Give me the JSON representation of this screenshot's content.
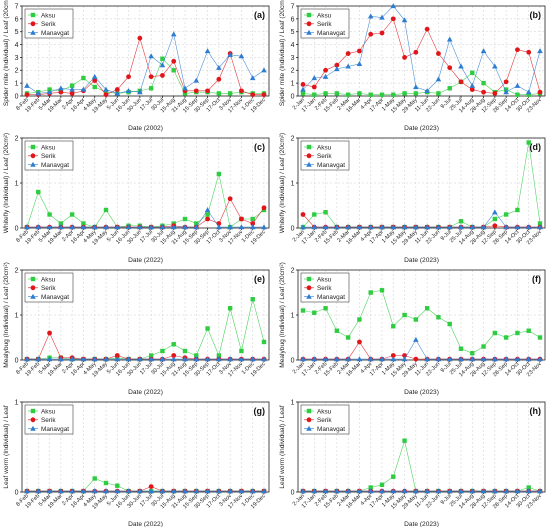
{
  "colors": {
    "Aksu": "#2ecc40",
    "Serik": "#e0161b",
    "Manavgat": "#2f7dd1"
  },
  "chart_data": [
    {
      "panel": "(a)",
      "type": "line",
      "ylabel": "Spider mite (Individual) / Leaf (20cm²)",
      "xlabel": "Date (2002)",
      "ylim": [
        0,
        7
      ],
      "yticks": [
        "0",
        "1",
        "2",
        "3",
        "4",
        "5",
        "6",
        "7"
      ],
      "categories": [
        "8-Feb",
        "19-Feb",
        "5-Mar",
        "19-Mar",
        "2-Apr",
        "16-Apr",
        "4-May",
        "19-May",
        "5-Jun",
        "16-Jun",
        "30-Jun",
        "17-Jul",
        "30-Jul",
        "15-Aug",
        "31-Aug",
        "15-Sep",
        "30-Sep",
        "17-Oct",
        "3-Nov",
        "17-Nov",
        "1-Dec",
        "19-Dec"
      ],
      "series": [
        {
          "name": "Aksu",
          "marker": "square",
          "values": [
            0.2,
            0.3,
            0.5,
            0.4,
            0.8,
            1.4,
            0.7,
            0.3,
            0.2,
            0.3,
            0.4,
            0.6,
            2.9,
            2.0,
            0.2,
            0.3,
            0.3,
            0.2,
            0.2,
            0.3,
            0.2,
            0.2
          ]
        },
        {
          "name": "Serik",
          "marker": "circle",
          "values": [
            0.1,
            0.1,
            0.2,
            0.3,
            0.2,
            0.4,
            1.2,
            0.1,
            0.5,
            1.5,
            4.5,
            1.5,
            1.6,
            2.7,
            0.4,
            0.4,
            0.4,
            1.3,
            3.3,
            0.4,
            0.1,
            0.1
          ]
        },
        {
          "name": "Manavgat",
          "marker": "triangle",
          "values": [
            0.8,
            0.2,
            0.3,
            0.6,
            0.5,
            0.5,
            1.5,
            0.5,
            0.2,
            0.4,
            0.3,
            3.1,
            2.4,
            4.8,
            0.6,
            1.2,
            3.5,
            2.2,
            3.2,
            3.1,
            1.4,
            2.0
          ]
        }
      ]
    },
    {
      "panel": "(b)",
      "type": "line",
      "ylabel": "Spider mite (Individual) / Leaf (20cm²)",
      "xlabel": "Date (2023)",
      "ylim": [
        0,
        7
      ],
      "yticks": [
        "0",
        "1",
        "2",
        "3",
        "4",
        "5",
        "6",
        "7"
      ],
      "categories": [
        "2-Jan",
        "17-Jan",
        "2-Feb",
        "15-Feb",
        "2-Mar",
        "16-Mar",
        "4-Apr",
        "17-Apr",
        "1-May",
        "15-May",
        "29-May",
        "11-Jun",
        "22-Jun",
        "9-Jul",
        "25-Jul",
        "14-Aug",
        "28-Aug",
        "12-Sep",
        "28-Sep",
        "14-Oct",
        "30-Oct",
        "23-Nov"
      ],
      "series": [
        {
          "name": "Aksu",
          "marker": "square",
          "values": [
            0.2,
            0.1,
            0.2,
            0.2,
            0.1,
            0.2,
            0.1,
            0.1,
            0.1,
            0.2,
            0.2,
            0.3,
            0.2,
            0.6,
            1.1,
            1.8,
            1.0,
            0.3,
            0.5,
            0.1,
            0.1,
            0.2
          ]
        },
        {
          "name": "Serik",
          "marker": "circle",
          "values": [
            0.9,
            0.7,
            2.0,
            2.4,
            3.3,
            3.5,
            4.8,
            4.9,
            6.0,
            3.0,
            3.4,
            5.2,
            3.3,
            2.2,
            1.1,
            0.5,
            0.3,
            0.2,
            1.1,
            3.6,
            3.4,
            0.3
          ]
        },
        {
          "name": "Manavgat",
          "marker": "triangle",
          "values": [
            0.5,
            1.4,
            1.5,
            2.1,
            2.3,
            2.5,
            6.2,
            6.1,
            7.0,
            5.9,
            0.7,
            0.4,
            1.3,
            4.4,
            2.3,
            0.8,
            3.5,
            2.3,
            0.3,
            0.8,
            0.3,
            3.5
          ]
        }
      ]
    },
    {
      "panel": "(c)",
      "type": "line",
      "ylabel": "Whitefly (Individual) / Leaf (20cm²)",
      "xlabel": "Date (2022)",
      "ylim": [
        0,
        2
      ],
      "yticks": [
        "0",
        "1",
        "2"
      ],
      "categories": [
        "8-Feb",
        "19-Feb",
        "5-Mar",
        "19-Mar",
        "2-Apr",
        "16-Apr",
        "4-May",
        "19-May",
        "5-Jun",
        "16-Jun",
        "30-Jun",
        "17-Jul",
        "30-Jul",
        "15-Aug",
        "31-Aug",
        "15-Sep",
        "30-Sep",
        "17-Oct",
        "3-Nov",
        "17-Nov",
        "1-Dec",
        "19-Dec"
      ],
      "series": [
        {
          "name": "Aksu",
          "marker": "square",
          "values": [
            0.02,
            0.8,
            0.3,
            0.1,
            0.3,
            0.1,
            0.02,
            0.4,
            0.02,
            0.05,
            0.05,
            0.02,
            0.05,
            0.1,
            0.2,
            0.1,
            0.3,
            1.2,
            0.02,
            0.2,
            0.2,
            0.4
          ]
        },
        {
          "name": "Serik",
          "marker": "circle",
          "values": [
            0.02,
            0.02,
            0.02,
            0.02,
            0.02,
            0.02,
            0.02,
            0.02,
            0.02,
            0.02,
            0.02,
            0.02,
            0.02,
            0.05,
            0.02,
            0.02,
            0.2,
            0.1,
            0.65,
            0.2,
            0.1,
            0.45
          ]
        },
        {
          "name": "Manavgat",
          "marker": "triangle",
          "values": [
            0.02,
            0.02,
            0.02,
            0.02,
            0.02,
            0.02,
            0.02,
            0.02,
            0.02,
            0.02,
            0.02,
            0.02,
            0.02,
            0.02,
            0.02,
            0.02,
            0.4,
            0.02,
            0.02,
            0.02,
            0.02,
            0.02
          ]
        }
      ]
    },
    {
      "panel": "(d)",
      "type": "line",
      "ylabel": "Whitefly (Individual) / Leaf (20cm²)",
      "xlabel": "Date (2023)",
      "ylim": [
        0,
        2
      ],
      "yticks": [
        "0",
        "1",
        "2"
      ],
      "categories": [
        "2-Jan",
        "17-Jan",
        "2-Feb",
        "15-Feb",
        "2-Mar",
        "16-Mar",
        "4-Apr",
        "17-Apr",
        "1-May",
        "15-May",
        "29-May",
        "11-Jun",
        "22-Jun",
        "9-Jul",
        "25-Jul",
        "14-Aug",
        "28-Aug",
        "12-Sep",
        "28-Sep",
        "14-Oct",
        "30-Oct",
        "23-Nov"
      ],
      "series": [
        {
          "name": "Aksu",
          "marker": "square",
          "values": [
            0.02,
            0.3,
            0.35,
            0.02,
            0.02,
            0.02,
            0.02,
            0.02,
            0.02,
            0.02,
            0.02,
            0.02,
            0.02,
            0.02,
            0.15,
            0.02,
            0.02,
            0.2,
            0.3,
            0.4,
            1.9,
            0.1
          ]
        },
        {
          "name": "Serik",
          "marker": "circle",
          "values": [
            0.3,
            0.02,
            0.02,
            0.02,
            0.02,
            0.02,
            0.02,
            0.02,
            0.02,
            0.02,
            0.02,
            0.02,
            0.02,
            0.02,
            0.02,
            0.02,
            0.02,
            0.05,
            0.02,
            0.02,
            0.02,
            0.02
          ]
        },
        {
          "name": "Manavgat",
          "marker": "triangle",
          "values": [
            0.02,
            0.02,
            0.02,
            0.02,
            0.02,
            0.02,
            0.02,
            0.02,
            0.02,
            0.02,
            0.02,
            0.02,
            0.02,
            0.02,
            0.02,
            0.02,
            0.02,
            0.35,
            0.02,
            0.02,
            0.02,
            0.02
          ]
        }
      ]
    },
    {
      "panel": "(e)",
      "type": "line",
      "ylabel": "Mealybug (Individual) / Leaf (20cm²)",
      "xlabel": "Date (2022)",
      "ylim": [
        0,
        2
      ],
      "yticks": [
        "0",
        "1",
        "2"
      ],
      "categories": [
        "8-Feb",
        "19-Feb",
        "5-Mar",
        "19-Mar",
        "2-Apr",
        "16-Apr",
        "4-May",
        "19-May",
        "5-Jun",
        "16-Jun",
        "30-Jun",
        "17-Jul",
        "30-Jul",
        "15-Aug",
        "31-Aug",
        "15-Sep",
        "30-Sep",
        "17-Oct",
        "3-Nov",
        "17-Nov",
        "1-Dec",
        "19-Dec"
      ],
      "series": [
        {
          "name": "Aksu",
          "marker": "square",
          "values": [
            0.02,
            0.02,
            0.05,
            0.05,
            0.02,
            0.02,
            0.02,
            0.02,
            0.05,
            0.02,
            0.02,
            0.1,
            0.2,
            0.35,
            0.2,
            0.1,
            0.7,
            0.1,
            1.15,
            0.2,
            1.35,
            0.4
          ]
        },
        {
          "name": "Serik",
          "marker": "circle",
          "values": [
            0.02,
            0.02,
            0.6,
            0.05,
            0.05,
            0.02,
            0.02,
            0.02,
            0.1,
            0.02,
            0.02,
            0.02,
            0.02,
            0.1,
            0.05,
            0.02,
            0.02,
            0.02,
            0.02,
            0.02,
            0.02,
            0.02
          ]
        },
        {
          "name": "Manavgat",
          "marker": "triangle",
          "values": [
            0.02,
            0.02,
            0.02,
            0.02,
            0.02,
            0.02,
            0.02,
            0.02,
            0.02,
            0.02,
            0.02,
            0.02,
            0.02,
            0.02,
            0.02,
            0.02,
            0.02,
            0.02,
            0.02,
            0.02,
            0.02,
            0.02
          ]
        }
      ]
    },
    {
      "panel": "(f)",
      "type": "line",
      "ylabel": "Mealybug (Individual) / Leaf (20cm²)",
      "xlabel": "Date (2023)",
      "ylim": [
        0,
        2
      ],
      "yticks": [
        "0",
        "1",
        "2"
      ],
      "categories": [
        "2-Jan",
        "17-Jan",
        "2-Feb",
        "15-Feb",
        "2-Mar",
        "16-Mar",
        "4-Apr",
        "17-Apr",
        "1-May",
        "15-May",
        "29-May",
        "11-Jun",
        "22-Jun",
        "9-Jul",
        "25-Jul",
        "14-Aug",
        "28-Aug",
        "12-Sep",
        "28-Sep",
        "14-Oct",
        "30-Oct",
        "23-Nov"
      ],
      "series": [
        {
          "name": "Aksu",
          "marker": "square",
          "values": [
            1.1,
            1.05,
            1.15,
            0.65,
            0.5,
            0.9,
            1.5,
            1.55,
            0.75,
            1.0,
            0.9,
            1.15,
            0.95,
            0.8,
            0.25,
            0.15,
            0.3,
            0.6,
            0.5,
            0.6,
            0.65,
            0.5
          ]
        },
        {
          "name": "Serik",
          "marker": "circle",
          "values": [
            0.02,
            0.02,
            0.02,
            0.02,
            0.02,
            0.4,
            0.02,
            0.02,
            0.1,
            0.1,
            0.02,
            0.02,
            0.02,
            0.02,
            0.02,
            0.02,
            0.02,
            0.02,
            0.02,
            0.02,
            0.02,
            0.02
          ]
        },
        {
          "name": "Manavgat",
          "marker": "triangle",
          "values": [
            0.02,
            0.02,
            0.02,
            0.02,
            0.02,
            0.02,
            0.02,
            0.02,
            0.02,
            0.02,
            0.45,
            0.02,
            0.02,
            0.02,
            0.02,
            0.02,
            0.02,
            0.02,
            0.02,
            0.02,
            0.02,
            0.02
          ]
        }
      ]
    },
    {
      "panel": "(g)",
      "type": "line",
      "ylabel": "Leaf worm (Individual) / Leaf",
      "xlabel": "Date (2022)",
      "ylim": [
        0,
        1
      ],
      "yticks": [
        "0",
        "1"
      ],
      "categories": [
        "8-Feb",
        "19-Feb",
        "5-Mar",
        "19-Mar",
        "2-Apr",
        "16-Apr",
        "4-May",
        "19-May",
        "5-Jun",
        "16-Jun",
        "30-Jun",
        "17-Jul",
        "30-Jul",
        "15-Aug",
        "31-Aug",
        "15-Sep",
        "30-Sep",
        "17-Oct",
        "3-Nov",
        "17-Nov",
        "1-Dec",
        "19-Dec"
      ],
      "series": [
        {
          "name": "Aksu",
          "marker": "square",
          "values": [
            0.01,
            0.01,
            0.01,
            0.01,
            0.01,
            0.01,
            0.15,
            0.1,
            0.07,
            0.01,
            0.01,
            0.01,
            0.01,
            0.01,
            0.01,
            0.01,
            0.01,
            0.01,
            0.01,
            0.01,
            0.01,
            0.01
          ]
        },
        {
          "name": "Serik",
          "marker": "circle",
          "values": [
            0.01,
            0.01,
            0.01,
            0.01,
            0.01,
            0.01,
            0.01,
            0.01,
            0.01,
            0.01,
            0.01,
            0.06,
            0.01,
            0.01,
            0.01,
            0.01,
            0.01,
            0.01,
            0.01,
            0.01,
            0.01,
            0.01
          ]
        },
        {
          "name": "Manavgat",
          "marker": "triangle",
          "values": [
            0.01,
            0.01,
            0.01,
            0.01,
            0.01,
            0.01,
            0.01,
            0.01,
            0.01,
            0.01,
            0.01,
            0.01,
            0.01,
            0.01,
            0.01,
            0.01,
            0.01,
            0.01,
            0.01,
            0.01,
            0.01,
            0.01
          ]
        }
      ]
    },
    {
      "panel": "(h)",
      "type": "line",
      "ylabel": "Leaf worm (Individual) / Leaf",
      "xlabel": "Date (2023)",
      "ylim": [
        0,
        1
      ],
      "yticks": [
        "0",
        "1"
      ],
      "categories": [
        "2-Jan",
        "17-Jan",
        "2-Feb",
        "15-Feb",
        "2-Mar",
        "16-Mar",
        "4-Apr",
        "17-Apr",
        "1-May",
        "15-May",
        "29-May",
        "11-Jun",
        "22-Jun",
        "9-Jul",
        "25-Jul",
        "14-Aug",
        "28-Aug",
        "12-Sep",
        "28-Sep",
        "14-Oct",
        "30-Oct",
        "23-Nov"
      ],
      "series": [
        {
          "name": "Aksu",
          "marker": "square",
          "values": [
            0.01,
            0.01,
            0.01,
            0.01,
            0.01,
            0.01,
            0.05,
            0.08,
            0.17,
            0.57,
            0.01,
            0.01,
            0.01,
            0.01,
            0.01,
            0.01,
            0.01,
            0.01,
            0.01,
            0.01,
            0.05,
            0.01
          ]
        },
        {
          "name": "Serik",
          "marker": "circle",
          "values": [
            0.01,
            0.01,
            0.01,
            0.01,
            0.01,
            0.01,
            0.01,
            0.01,
            0.01,
            0.01,
            0.01,
            0.01,
            0.01,
            0.01,
            0.01,
            0.01,
            0.01,
            0.01,
            0.01,
            0.01,
            0.01,
            0.01
          ]
        },
        {
          "name": "Manavgat",
          "marker": "triangle",
          "values": [
            0.01,
            0.01,
            0.01,
            0.01,
            0.01,
            0.01,
            0.01,
            0.01,
            0.01,
            0.01,
            0.01,
            0.01,
            0.01,
            0.01,
            0.01,
            0.01,
            0.01,
            0.01,
            0.01,
            0.01,
            0.01,
            0.01
          ]
        }
      ]
    }
  ]
}
